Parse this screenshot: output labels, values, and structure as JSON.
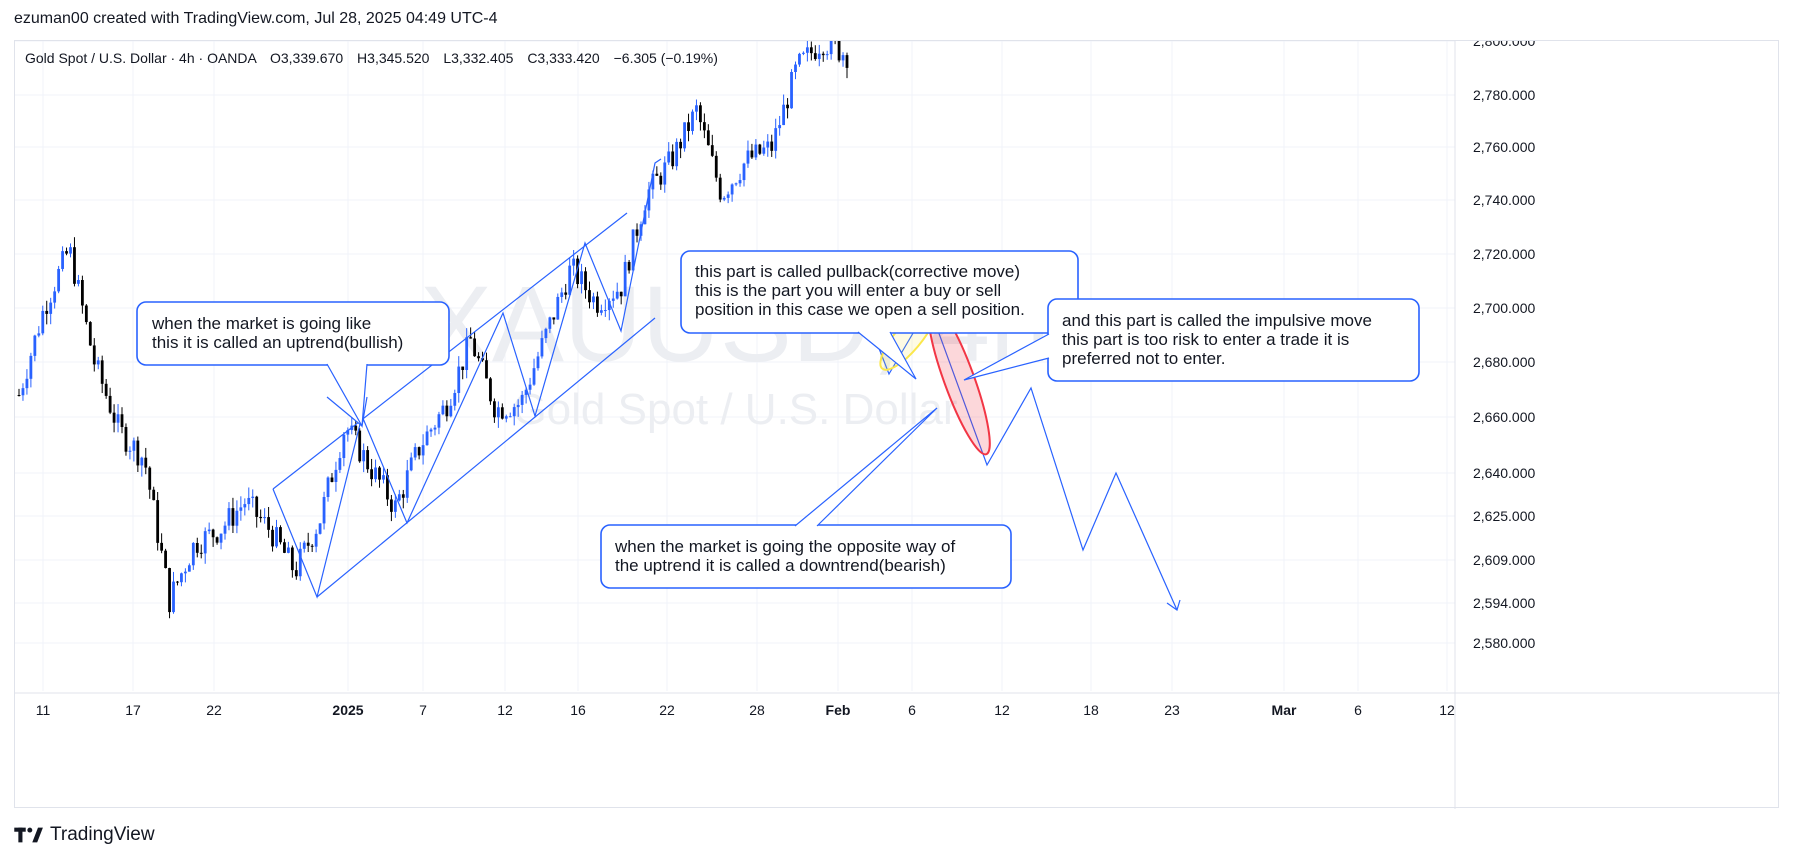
{
  "header": {
    "attribution": "ezuman00 created with TradingView.com, Jul 28, 2025 04:49 UTC-4"
  },
  "legend": {
    "symbol": "Gold Spot / U.S. Dollar · 4h · OANDA",
    "open": "O3,339.670",
    "high": "H3,345.520",
    "low": "L3,332.405",
    "close": "C3,333.420",
    "change": "−6.305 (−0.19%)"
  },
  "watermark": {
    "ticker": "XAUUSD, 4h",
    "name": "Gold Spot / U.S. Dollar"
  },
  "footer": {
    "brand": "TradingView"
  },
  "colors": {
    "up": "#2962ff",
    "down": "#000000",
    "drawing": "#2962ff",
    "pullback_ellipse": "#fbe74b",
    "impulse_ellipse": "#f23645",
    "grid": "#f0f3fa",
    "axis_text": "#131722"
  },
  "chart_data": {
    "type": "candlestick",
    "title": "Gold Spot / U.S. Dollar · 4h · OANDA",
    "y_axis": {
      "side": "right",
      "ticks": [
        2800,
        2780,
        2760,
        2740,
        2720,
        2700,
        2680,
        2660,
        2640,
        2625,
        2609,
        2594,
        2580
      ],
      "tick_labels": [
        "2,800.000",
        "2,780.000",
        "2,760.000",
        "2,740.000",
        "2,720.000",
        "2,700.000",
        "2,680.000",
        "2,660.000",
        "2,640.000",
        "2,625.000",
        "2,609.000",
        "2,594.000",
        "2,580.000"
      ]
    },
    "x_axis": {
      "tick_labels": [
        "11",
        "17",
        "22",
        "2025",
        "7",
        "12",
        "16",
        "22",
        "28",
        "Feb",
        "6",
        "12",
        "18",
        "23",
        "Mar",
        "6",
        "12"
      ],
      "bold_labels": [
        "2025",
        "Feb",
        "Mar"
      ]
    },
    "grid": true,
    "price_path": {
      "x": [
        "Dec 10",
        "Dec 11",
        "Dec 12",
        "Dec 13",
        "Dec 16",
        "Dec 18",
        "Dec 19",
        "Dec 20",
        "Dec 23",
        "Dec 26",
        "Dec 27",
        "Dec 30",
        "Dec 31",
        "Jan 2",
        "Jan 3",
        "Jan 6",
        "Jan 7",
        "Jan 8",
        "Jan 10",
        "Jan 13",
        "Jan 14",
        "Jan 15",
        "Jan 16",
        "Jan 17",
        "Jan 20",
        "Jan 21",
        "Jan 22",
        "Jan 24",
        "Jan 27",
        "Jan 28",
        "Jan 29",
        "Jan 30",
        "Jan 31",
        "Feb 3"
      ],
      "close": [
        2668,
        2700,
        2722,
        2680,
        2655,
        2645,
        2595,
        2615,
        2620,
        2630,
        2620,
        2605,
        2624,
        2657,
        2642,
        2628,
        2650,
        2664,
        2688,
        2663,
        2665,
        2690,
        2715,
        2702,
        2708,
        2742,
        2755,
        2774,
        2742,
        2755,
        2760,
        2790,
        2800,
        2795
      ]
    },
    "annotations": [
      {
        "text_lines": [
          "when the market is going like",
          "this it is called an uptrend(bullish)"
        ]
      },
      {
        "text_lines": [
          "this part is called pullback(corrective move)",
          "this is the part you will enter a buy or sell",
          "position in this case we open a sell position."
        ]
      },
      {
        "text_lines": [
          "and this part is called the impulsive move",
          "this part is too risk to enter a trade it is",
          "preferred not to enter."
        ]
      },
      {
        "text_lines": [
          "when the market is going the opposite way of",
          "the uptrend it is called a downtrend(bearish)"
        ]
      }
    ],
    "projection": {
      "description_points": [
        2700,
        2678,
        2700,
        2642,
        2668,
        2609,
        2640,
        2594
      ]
    }
  }
}
